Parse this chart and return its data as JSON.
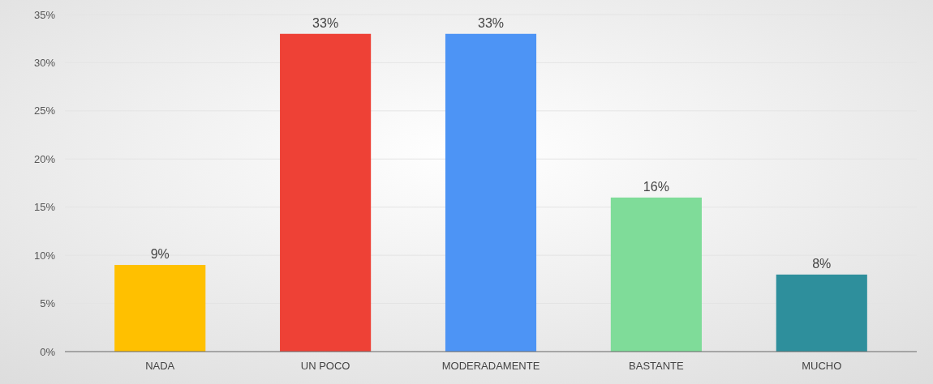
{
  "chart_data": {
    "type": "bar",
    "categories": [
      "NADA",
      "UN POCO",
      "MODERADAMENTE",
      "BASTANTE",
      "MUCHO"
    ],
    "values": [
      9,
      33,
      33,
      16,
      8
    ],
    "colors": [
      "#ffc000",
      "#ee4136",
      "#4d94f5",
      "#7fdc99",
      "#2e8f9c"
    ],
    "value_labels": [
      "9%",
      "33%",
      "33%",
      "16%",
      "8%"
    ],
    "ylim": [
      0,
      35
    ],
    "yticks": [
      {
        "value": 0,
        "label": "0%"
      },
      {
        "value": 5,
        "label": "5%"
      },
      {
        "value": 10,
        "label": "10%"
      },
      {
        "value": 15,
        "label": "15%"
      },
      {
        "value": 20,
        "label": "20%"
      },
      {
        "value": 25,
        "label": "25%"
      },
      {
        "value": 30,
        "label": "30%"
      },
      {
        "value": 35,
        "label": "35%"
      }
    ],
    "grid": "y"
  }
}
